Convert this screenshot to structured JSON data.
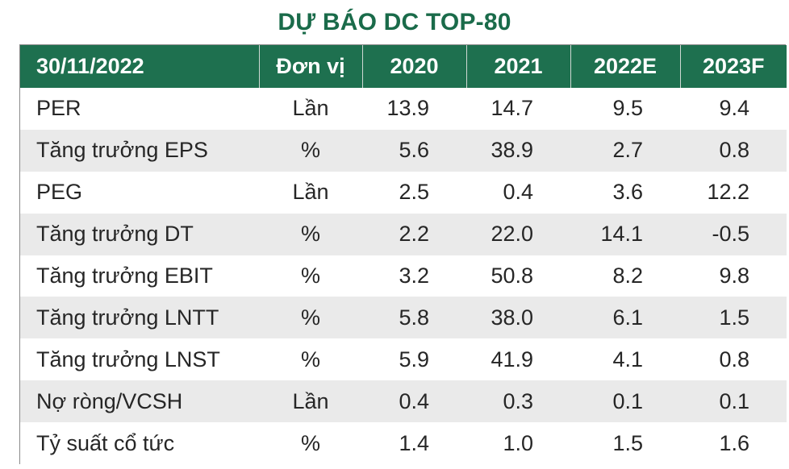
{
  "title": "DỰ BÁO DC TOP-80",
  "colors": {
    "header_bg": "#1e704f",
    "title": "#1a6b4a",
    "alt_row": "#eaeaea"
  },
  "table": {
    "headers": [
      "30/11/2022",
      "Đơn vị",
      "2020",
      "2021",
      "2022E",
      "2023F"
    ],
    "rows": [
      {
        "label": "PER",
        "unit": "Lần",
        "v2020": "13.9",
        "v2021": "14.7",
        "v2022": "9.5",
        "v2023": "9.4"
      },
      {
        "label": "Tăng trưởng EPS",
        "unit": "%",
        "v2020": "5.6",
        "v2021": "38.9",
        "v2022": "2.7",
        "v2023": "0.8"
      },
      {
        "label": "PEG",
        "unit": "Lần",
        "v2020": "2.5",
        "v2021": "0.4",
        "v2022": "3.6",
        "v2023": "12.2"
      },
      {
        "label": "Tăng trưởng DT",
        "unit": "%",
        "v2020": "2.2",
        "v2021": "22.0",
        "v2022": "14.1",
        "v2023": "-0.5"
      },
      {
        "label": "Tăng trưởng EBIT",
        "unit": "%",
        "v2020": "3.2",
        "v2021": "50.8",
        "v2022": "8.2",
        "v2023": "9.8"
      },
      {
        "label": "Tăng trưởng LNTT",
        "unit": "%",
        "v2020": "5.8",
        "v2021": "38.0",
        "v2022": "6.1",
        "v2023": "1.5"
      },
      {
        "label": "Tăng trưởng LNST",
        "unit": "%",
        "v2020": "5.9",
        "v2021": "41.9",
        "v2022": "4.1",
        "v2023": "0.8"
      },
      {
        "label": "Nợ ròng/VCSH",
        "unit": "Lần",
        "v2020": "0.4",
        "v2021": "0.3",
        "v2022": "0.1",
        "v2023": "0.1"
      },
      {
        "label": "Tỷ suất cổ tức",
        "unit": "%",
        "v2020": "1.4",
        "v2021": "1.0",
        "v2022": "1.5",
        "v2023": "1.6"
      }
    ]
  }
}
